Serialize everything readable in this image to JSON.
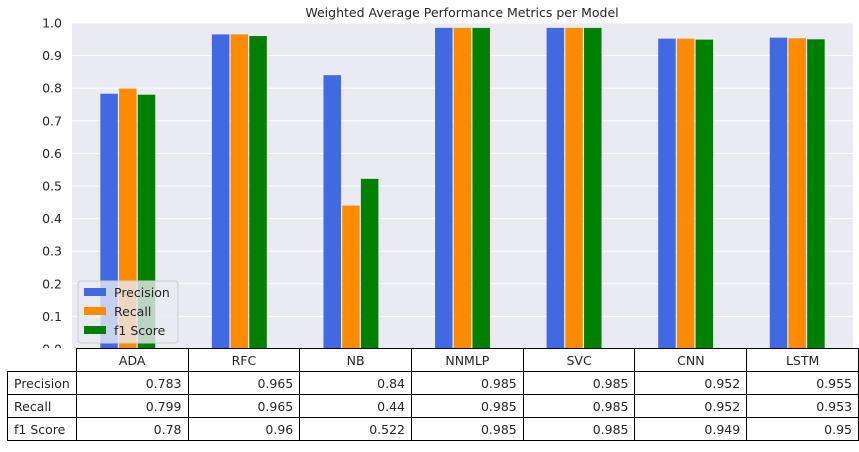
{
  "chart_data": {
    "type": "bar",
    "title": "Weighted Average Performance Metrics per Model",
    "categories": [
      "ADA",
      "RFC",
      "NB",
      "NNMLP",
      "SVC",
      "CNN",
      "LSTM"
    ],
    "series": [
      {
        "name": "Precision",
        "color": "#4169e1",
        "values": [
          0.783,
          0.965,
          0.84,
          0.985,
          0.985,
          0.952,
          0.955
        ]
      },
      {
        "name": "Recall",
        "color": "#ff8c00",
        "values": [
          0.799,
          0.965,
          0.44,
          0.985,
          0.985,
          0.952,
          0.953
        ]
      },
      {
        "name": "f1 Score",
        "color": "#008000",
        "values": [
          0.78,
          0.96,
          0.522,
          0.985,
          0.985,
          0.949,
          0.95
        ]
      }
    ],
    "ylim": [
      0,
      1.0
    ],
    "yticks": [
      "0.0",
      "0.1",
      "0.2",
      "0.3",
      "0.4",
      "0.5",
      "0.6",
      "0.7",
      "0.8",
      "0.9",
      "1.0"
    ],
    "xlabel": "",
    "ylabel": "",
    "grid": true,
    "legend_position": "lower-left",
    "background": "#eaeaf2"
  },
  "table": {
    "rows": [
      {
        "label": "Precision",
        "values": [
          "0.783",
          "0.965",
          "0.84",
          "0.985",
          "0.985",
          "0.952",
          "0.955"
        ]
      },
      {
        "label": "Recall",
        "values": [
          "0.799",
          "0.965",
          "0.44",
          "0.985",
          "0.985",
          "0.952",
          "0.953"
        ]
      },
      {
        "label": "f1 Score",
        "values": [
          "0.78",
          "0.96",
          "0.522",
          "0.985",
          "0.985",
          "0.949",
          "0.95"
        ]
      }
    ]
  }
}
